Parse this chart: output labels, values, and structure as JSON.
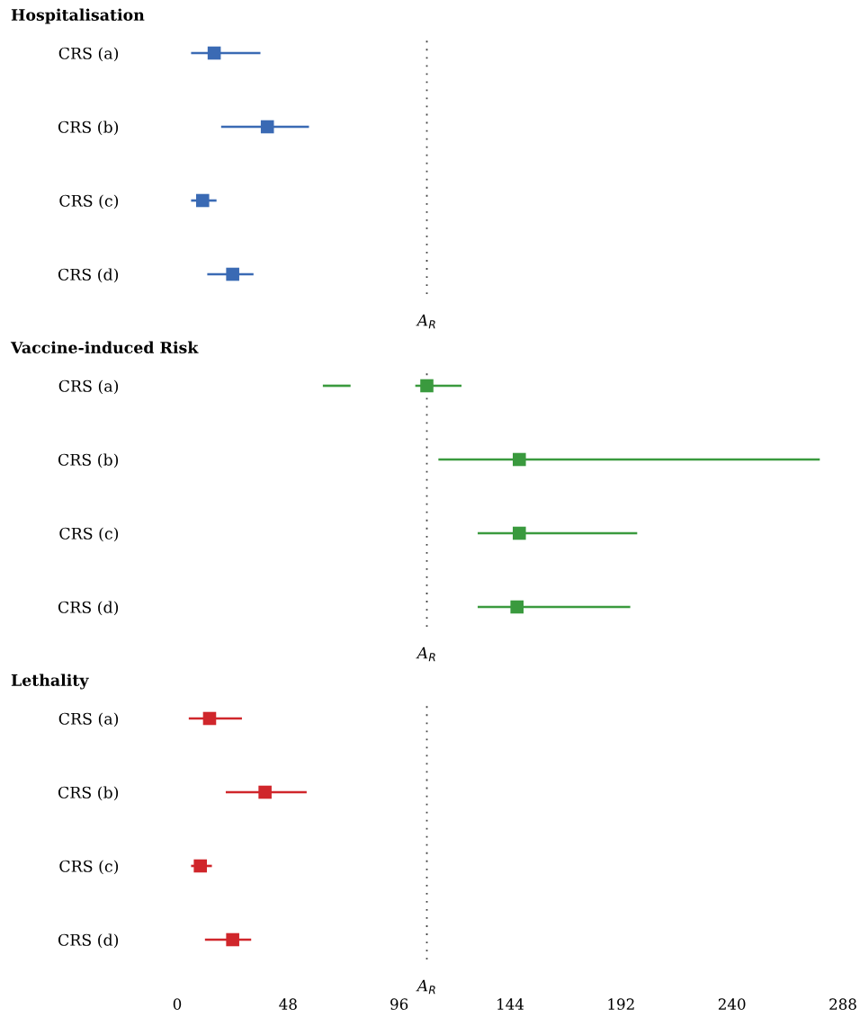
{
  "chart_data": [
    {
      "type": "scatter",
      "orientation": "horizontal",
      "title": "Hospitalisation",
      "categories": [
        "CRS (a)",
        "CRS (b)",
        "CRS (c)",
        "CRS (d)"
      ],
      "marker": "square",
      "series": [
        {
          "color": "#3a6ab4",
          "values": [
            16,
            39,
            11,
            24
          ],
          "errors": [
            [
              6,
              36
            ],
            [
              19,
              57
            ],
            [
              6,
              17
            ],
            [
              13,
              33
            ]
          ]
        }
      ],
      "xlim": [
        0,
        288
      ],
      "xticks": [
        0,
        48,
        96,
        144,
        192,
        240,
        288
      ],
      "tick_labels": "y",
      "ref_lines": [
        {
          "axis": "x",
          "value": 108,
          "label": "A$_{R}$",
          "color": "#444444",
          "line_style": "dotted"
        }
      ]
    },
    {
      "type": "scatter",
      "orientation": "horizontal",
      "title": "Vaccine-induced Risk",
      "categories": [
        "CRS (a)",
        "CRS (b)",
        "CRS (c)",
        "CRS (d)"
      ],
      "marker": "square",
      "series": [
        {
          "color": "#3a9a3e",
          "values": [
            108,
            148,
            148,
            147
          ],
          "errors": [
            [
              103,
              123
            ],
            [
              113,
              278
            ],
            [
              130,
              199
            ],
            [
              130,
              196
            ]
          ]
        },
        {
          "type": "bar",
          "color": "#3a9a3e",
          "base": [
            63,
            null,
            null,
            null
          ],
          "values": [
            12,
            null,
            null,
            null
          ]
        }
      ],
      "xlim": [
        0,
        288
      ],
      "xticks": [
        0,
        48,
        96,
        144,
        192,
        240,
        288
      ],
      "tick_labels": "y",
      "ref_lines": [
        {
          "axis": "x",
          "value": 108,
          "label": "A$_{R}$",
          "color": "#444444",
          "line_style": "dotted"
        }
      ]
    },
    {
      "type": "scatter",
      "orientation": "horizontal",
      "title": "Lethality",
      "categories": [
        "CRS (a)",
        "CRS (b)",
        "CRS (c)",
        "CRS (d)"
      ],
      "marker": "square",
      "series": [
        {
          "color": "#d0262b",
          "values": [
            14,
            38,
            10,
            24
          ],
          "errors": [
            [
              5,
              28
            ],
            [
              21,
              56
            ],
            [
              6,
              15
            ],
            [
              12,
              32
            ]
          ]
        }
      ],
      "xlim": [
        0,
        288
      ],
      "xticks": [
        0,
        48,
        96,
        144,
        192,
        240,
        288
      ],
      "ref_lines": [
        {
          "axis": "x",
          "value": 108,
          "label": "A$_{R}$",
          "color": "#444444",
          "line_style": "dotted"
        }
      ]
    }
  ]
}
